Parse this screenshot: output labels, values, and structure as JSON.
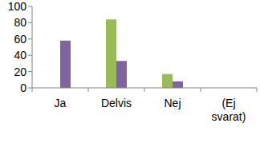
{
  "chart_data": {
    "type": "bar",
    "categories": [
      "Ja",
      "Delvis",
      "Nej",
      "(Ej svarat)"
    ],
    "series": [
      {
        "color": "#9bbb59",
        "values": [
          0,
          84,
          17,
          0
        ]
      },
      {
        "color": "#8064a2",
        "values": [
          58,
          33,
          8,
          0
        ]
      }
    ],
    "ylim": [
      0,
      100
    ],
    "yticks": [
      0,
      20,
      40,
      60,
      80,
      100
    ],
    "grid": false
  }
}
